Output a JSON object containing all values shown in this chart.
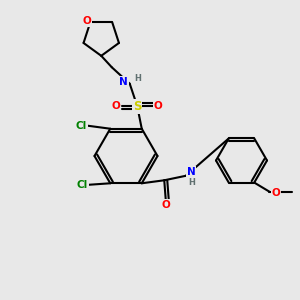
{
  "bg_color": "#e8e8e8",
  "bond_color": "black",
  "bond_width": 1.5,
  "atom_colors": {
    "C": "black",
    "H": "#607070",
    "N": "blue",
    "O": "red",
    "S": "#cccc00",
    "Cl": "green"
  },
  "font_size": 7.5,
  "figsize": [
    3.0,
    3.0
  ],
  "dpi": 100,
  "xlim": [
    0,
    10
  ],
  "ylim": [
    0,
    10
  ]
}
